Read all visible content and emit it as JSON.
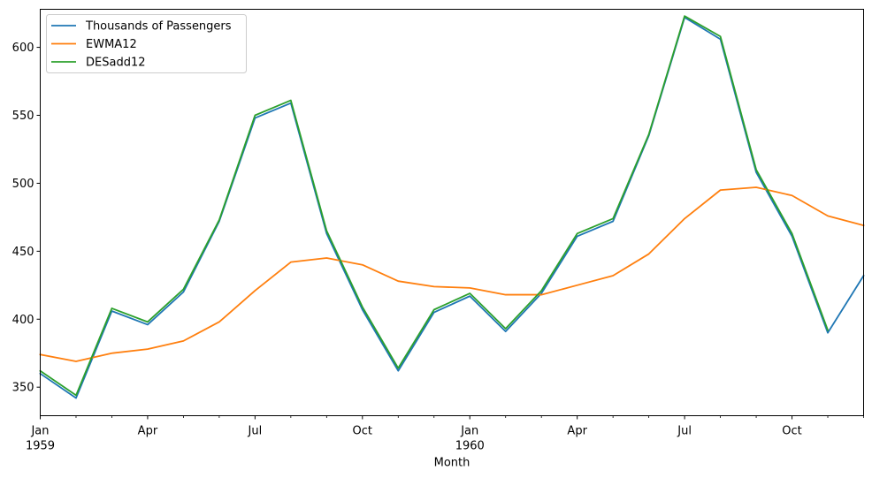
{
  "chart_data": {
    "type": "line",
    "title": "",
    "xlabel": "Month",
    "ylabel": "",
    "x": [
      "1959-01",
      "1959-02",
      "1959-03",
      "1959-04",
      "1959-05",
      "1959-06",
      "1959-07",
      "1959-08",
      "1959-09",
      "1959-10",
      "1959-11",
      "1959-12",
      "1960-01",
      "1960-02",
      "1960-03",
      "1960-04",
      "1960-05",
      "1960-06",
      "1960-07",
      "1960-08",
      "1960-09",
      "1960-10",
      "1960-11",
      "1960-12"
    ],
    "x_tick_labels": [
      {
        "label": "Jan",
        "sublabel": "1959",
        "index": 0
      },
      {
        "label": "Apr",
        "sublabel": "",
        "index": 3
      },
      {
        "label": "Jul",
        "sublabel": "",
        "index": 6
      },
      {
        "label": "Oct",
        "sublabel": "",
        "index": 9
      },
      {
        "label": "Jan",
        "sublabel": "1960",
        "index": 12
      },
      {
        "label": "Apr",
        "sublabel": "",
        "index": 15
      },
      {
        "label": "Jul",
        "sublabel": "",
        "index": 18
      },
      {
        "label": "Oct",
        "sublabel": "",
        "index": 21
      }
    ],
    "y_ticks": [
      350,
      400,
      450,
      500,
      550,
      600
    ],
    "ylim": [
      329,
      628
    ],
    "grid": false,
    "legend_position": "top-left",
    "series": [
      {
        "name": "Thousands of Passengers",
        "color": "#1f77b4",
        "values": [
          360,
          342,
          406,
          396,
          420,
          472,
          548,
          559,
          463,
          407,
          362,
          405,
          417,
          391,
          419,
          461,
          472,
          535,
          622,
          606,
          508,
          461,
          390,
          432
        ]
      },
      {
        "name": "EWMA12",
        "color": "#ff7f0e",
        "values": [
          374,
          369,
          375,
          378,
          384,
          398,
          421,
          442,
          445,
          440,
          428,
          424,
          423,
          418,
          418,
          425,
          432,
          448,
          474,
          495,
          497,
          491,
          476,
          469
        ]
      },
      {
        "name": "DESadd12",
        "color": "#2ca02c",
        "values": [
          362,
          344,
          408,
          398,
          422,
          473,
          550,
          561,
          465,
          409,
          364,
          407,
          419,
          393,
          421,
          463,
          474,
          536,
          623,
          608,
          510,
          463,
          392,
          null
        ]
      }
    ]
  }
}
